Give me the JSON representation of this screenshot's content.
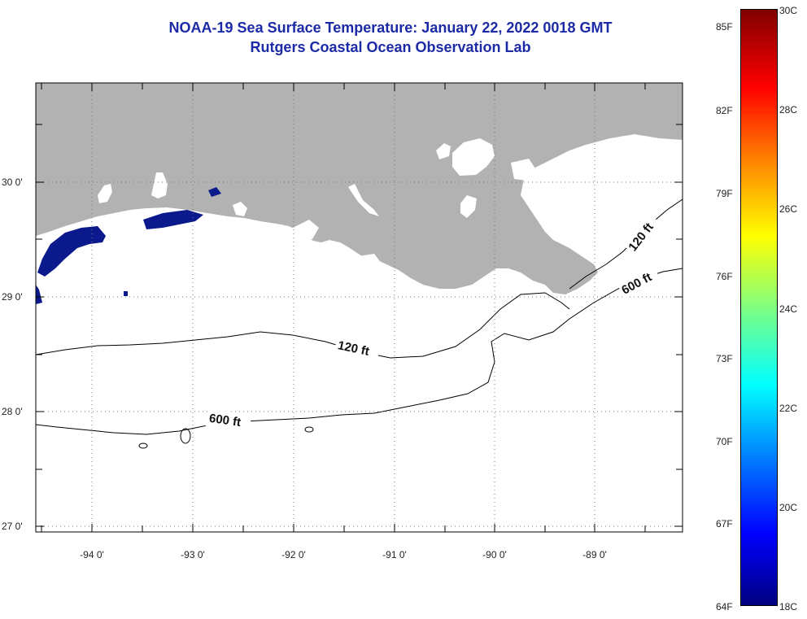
{
  "header": {
    "title": "NOAA-19 Sea Surface Temperature:  January 22, 2022 0018 GMT",
    "subtitle": "Rutgers Coastal Ocean Observation Lab"
  },
  "map": {
    "lat_labels": [
      "30 0'",
      "29 0'",
      "28 0'",
      "27 0'"
    ],
    "lon_labels": [
      "-94 0'",
      "-93 0'",
      "-92 0'",
      "-91 0'",
      "-90 0'",
      "-89 0'"
    ],
    "contours": [
      {
        "label": "120 ft"
      },
      {
        "label": "600 ft"
      }
    ],
    "land_color": "#b2b2b2",
    "cold_water_color": "#0a1a8c"
  },
  "colorbar": {
    "fahrenheit_labels": [
      "85F",
      "82F",
      "79F",
      "76F",
      "73F",
      "70F",
      "67F",
      "64F"
    ],
    "celsius_labels": [
      "30C",
      "28C",
      "26C",
      "24C",
      "22C",
      "20C",
      "18C"
    ],
    "gradient_colors": [
      "#800000",
      "#ff0000",
      "#ff8000",
      "#ffff00",
      "#80ff80",
      "#00ffff",
      "#0080ff",
      "#0000ff",
      "#000080"
    ]
  }
}
